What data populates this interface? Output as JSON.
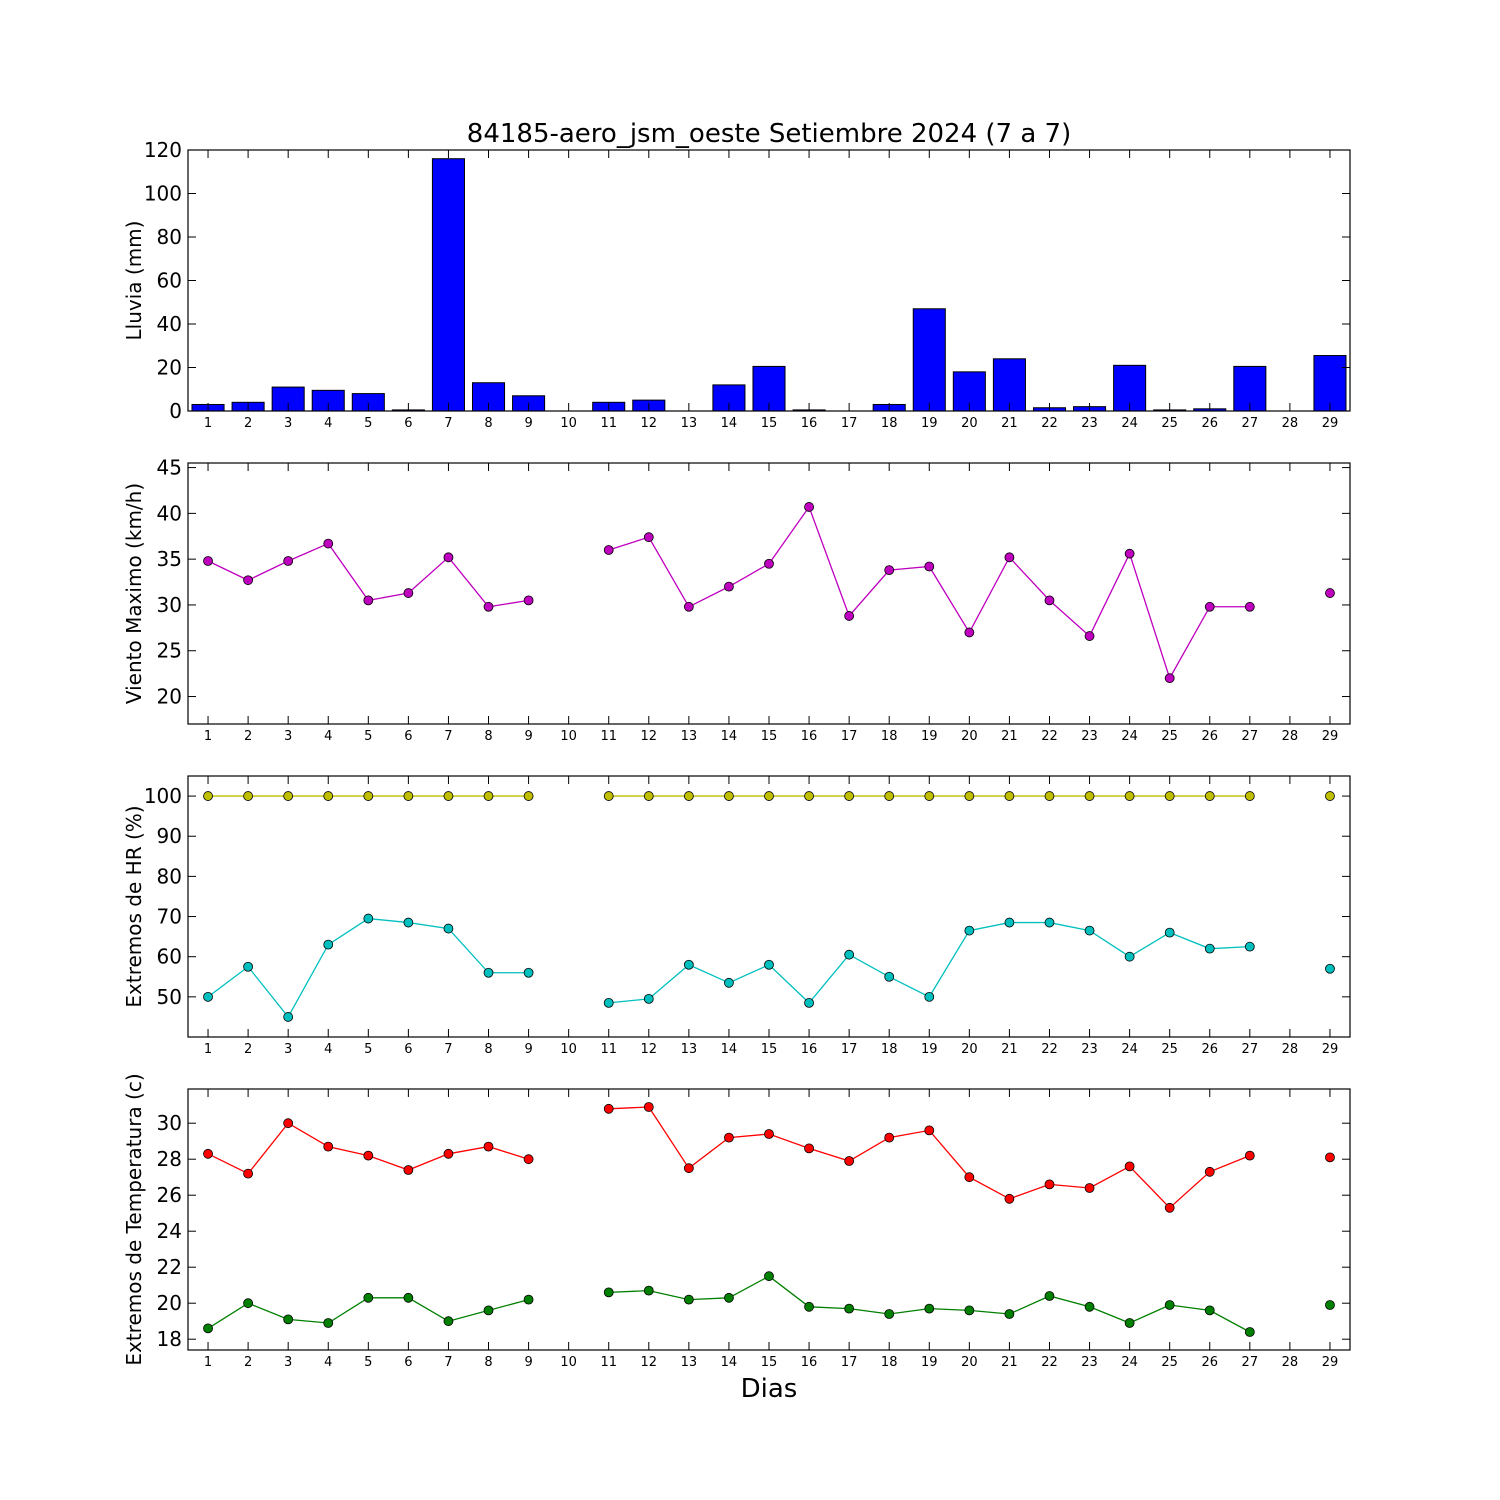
{
  "chart_data": {
    "title": "84185-aero_jsm_oeste Setiembre 2024  (7 a 7)",
    "xlabel": "Dias",
    "x": [
      1,
      2,
      3,
      4,
      5,
      6,
      7,
      8,
      9,
      10,
      11,
      12,
      13,
      14,
      15,
      16,
      17,
      18,
      19,
      20,
      21,
      22,
      23,
      24,
      25,
      26,
      27,
      28,
      29
    ],
    "xlim": [
      0.5,
      29.5
    ],
    "subplots": [
      {
        "type": "bar",
        "ylabel": "Lluvia (mm)",
        "ylim": [
          0,
          120
        ],
        "yticks": [
          0,
          20,
          40,
          60,
          80,
          100,
          120
        ],
        "series": [
          {
            "color": "#0000ff",
            "values": [
              3,
              4,
              11,
              9.5,
              8,
              0.5,
              116,
              13,
              7,
              0,
              4,
              5,
              0,
              12,
              20.5,
              0.5,
              0,
              3,
              47,
              18,
              24,
              1.5,
              2,
              21,
              0.5,
              1,
              20.5,
              0,
              25.5
            ]
          }
        ]
      },
      {
        "type": "line",
        "ylabel": "Viento Maximo (km/h)",
        "ylim": [
          17,
          45.5
        ],
        "yticks": [
          20,
          25,
          30,
          35,
          40,
          45
        ],
        "series": [
          {
            "color": "#bf00bf",
            "values": [
              34.8,
              32.7,
              34.8,
              36.7,
              30.5,
              31.3,
              35.2,
              29.8,
              30.5,
              null,
              36.0,
              37.4,
              29.8,
              32.0,
              34.5,
              40.7,
              28.8,
              33.8,
              34.2,
              27.0,
              35.2,
              30.5,
              26.6,
              35.6,
              22.0,
              29.8,
              29.8,
              null,
              31.3
            ]
          }
        ]
      },
      {
        "type": "line",
        "ylabel": "Extremos de HR (%)",
        "ylim": [
          40,
          105
        ],
        "yticks": [
          50,
          60,
          70,
          80,
          90,
          100
        ],
        "series": [
          {
            "color": "#bfbf00",
            "values": [
              100,
              100,
              100,
              100,
              100,
              100,
              100,
              100,
              100,
              null,
              100,
              100,
              100,
              100,
              100,
              100,
              100,
              100,
              100,
              100,
              100,
              100,
              100,
              100,
              100,
              100,
              100,
              null,
              100
            ]
          },
          {
            "color": "#00bfbf",
            "values": [
              50,
              57.5,
              45,
              63,
              69.5,
              68.5,
              67,
              56,
              56,
              null,
              48.5,
              49.5,
              58,
              53.5,
              58,
              48.5,
              60.5,
              55,
              50,
              66.5,
              68.5,
              68.5,
              66.5,
              60,
              66,
              62,
              62.5,
              null,
              57
            ]
          }
        ]
      },
      {
        "type": "line",
        "ylabel": "Extremos de Temperatura (c)",
        "ylim": [
          17.4,
          31.9
        ],
        "yticks": [
          18,
          20,
          22,
          24,
          26,
          28,
          30
        ],
        "series": [
          {
            "color": "#ff0000",
            "values": [
              28.3,
              27.2,
              30.0,
              28.7,
              28.2,
              27.4,
              28.3,
              28.7,
              28.0,
              null,
              30.8,
              30.9,
              27.5,
              29.2,
              29.4,
              28.6,
              27.9,
              29.2,
              29.6,
              27.0,
              25.8,
              26.6,
              26.4,
              27.6,
              25.3,
              27.3,
              28.2,
              null,
              28.1
            ]
          },
          {
            "color": "#008000",
            "values": [
              18.6,
              20.0,
              19.1,
              18.9,
              20.3,
              20.3,
              19.0,
              19.6,
              20.2,
              null,
              20.6,
              20.7,
              20.2,
              20.3,
              21.5,
              19.8,
              19.7,
              19.4,
              19.7,
              19.6,
              19.4,
              20.4,
              19.8,
              18.9,
              19.9,
              19.6,
              18.4,
              null,
              19.9
            ]
          }
        ]
      }
    ]
  }
}
